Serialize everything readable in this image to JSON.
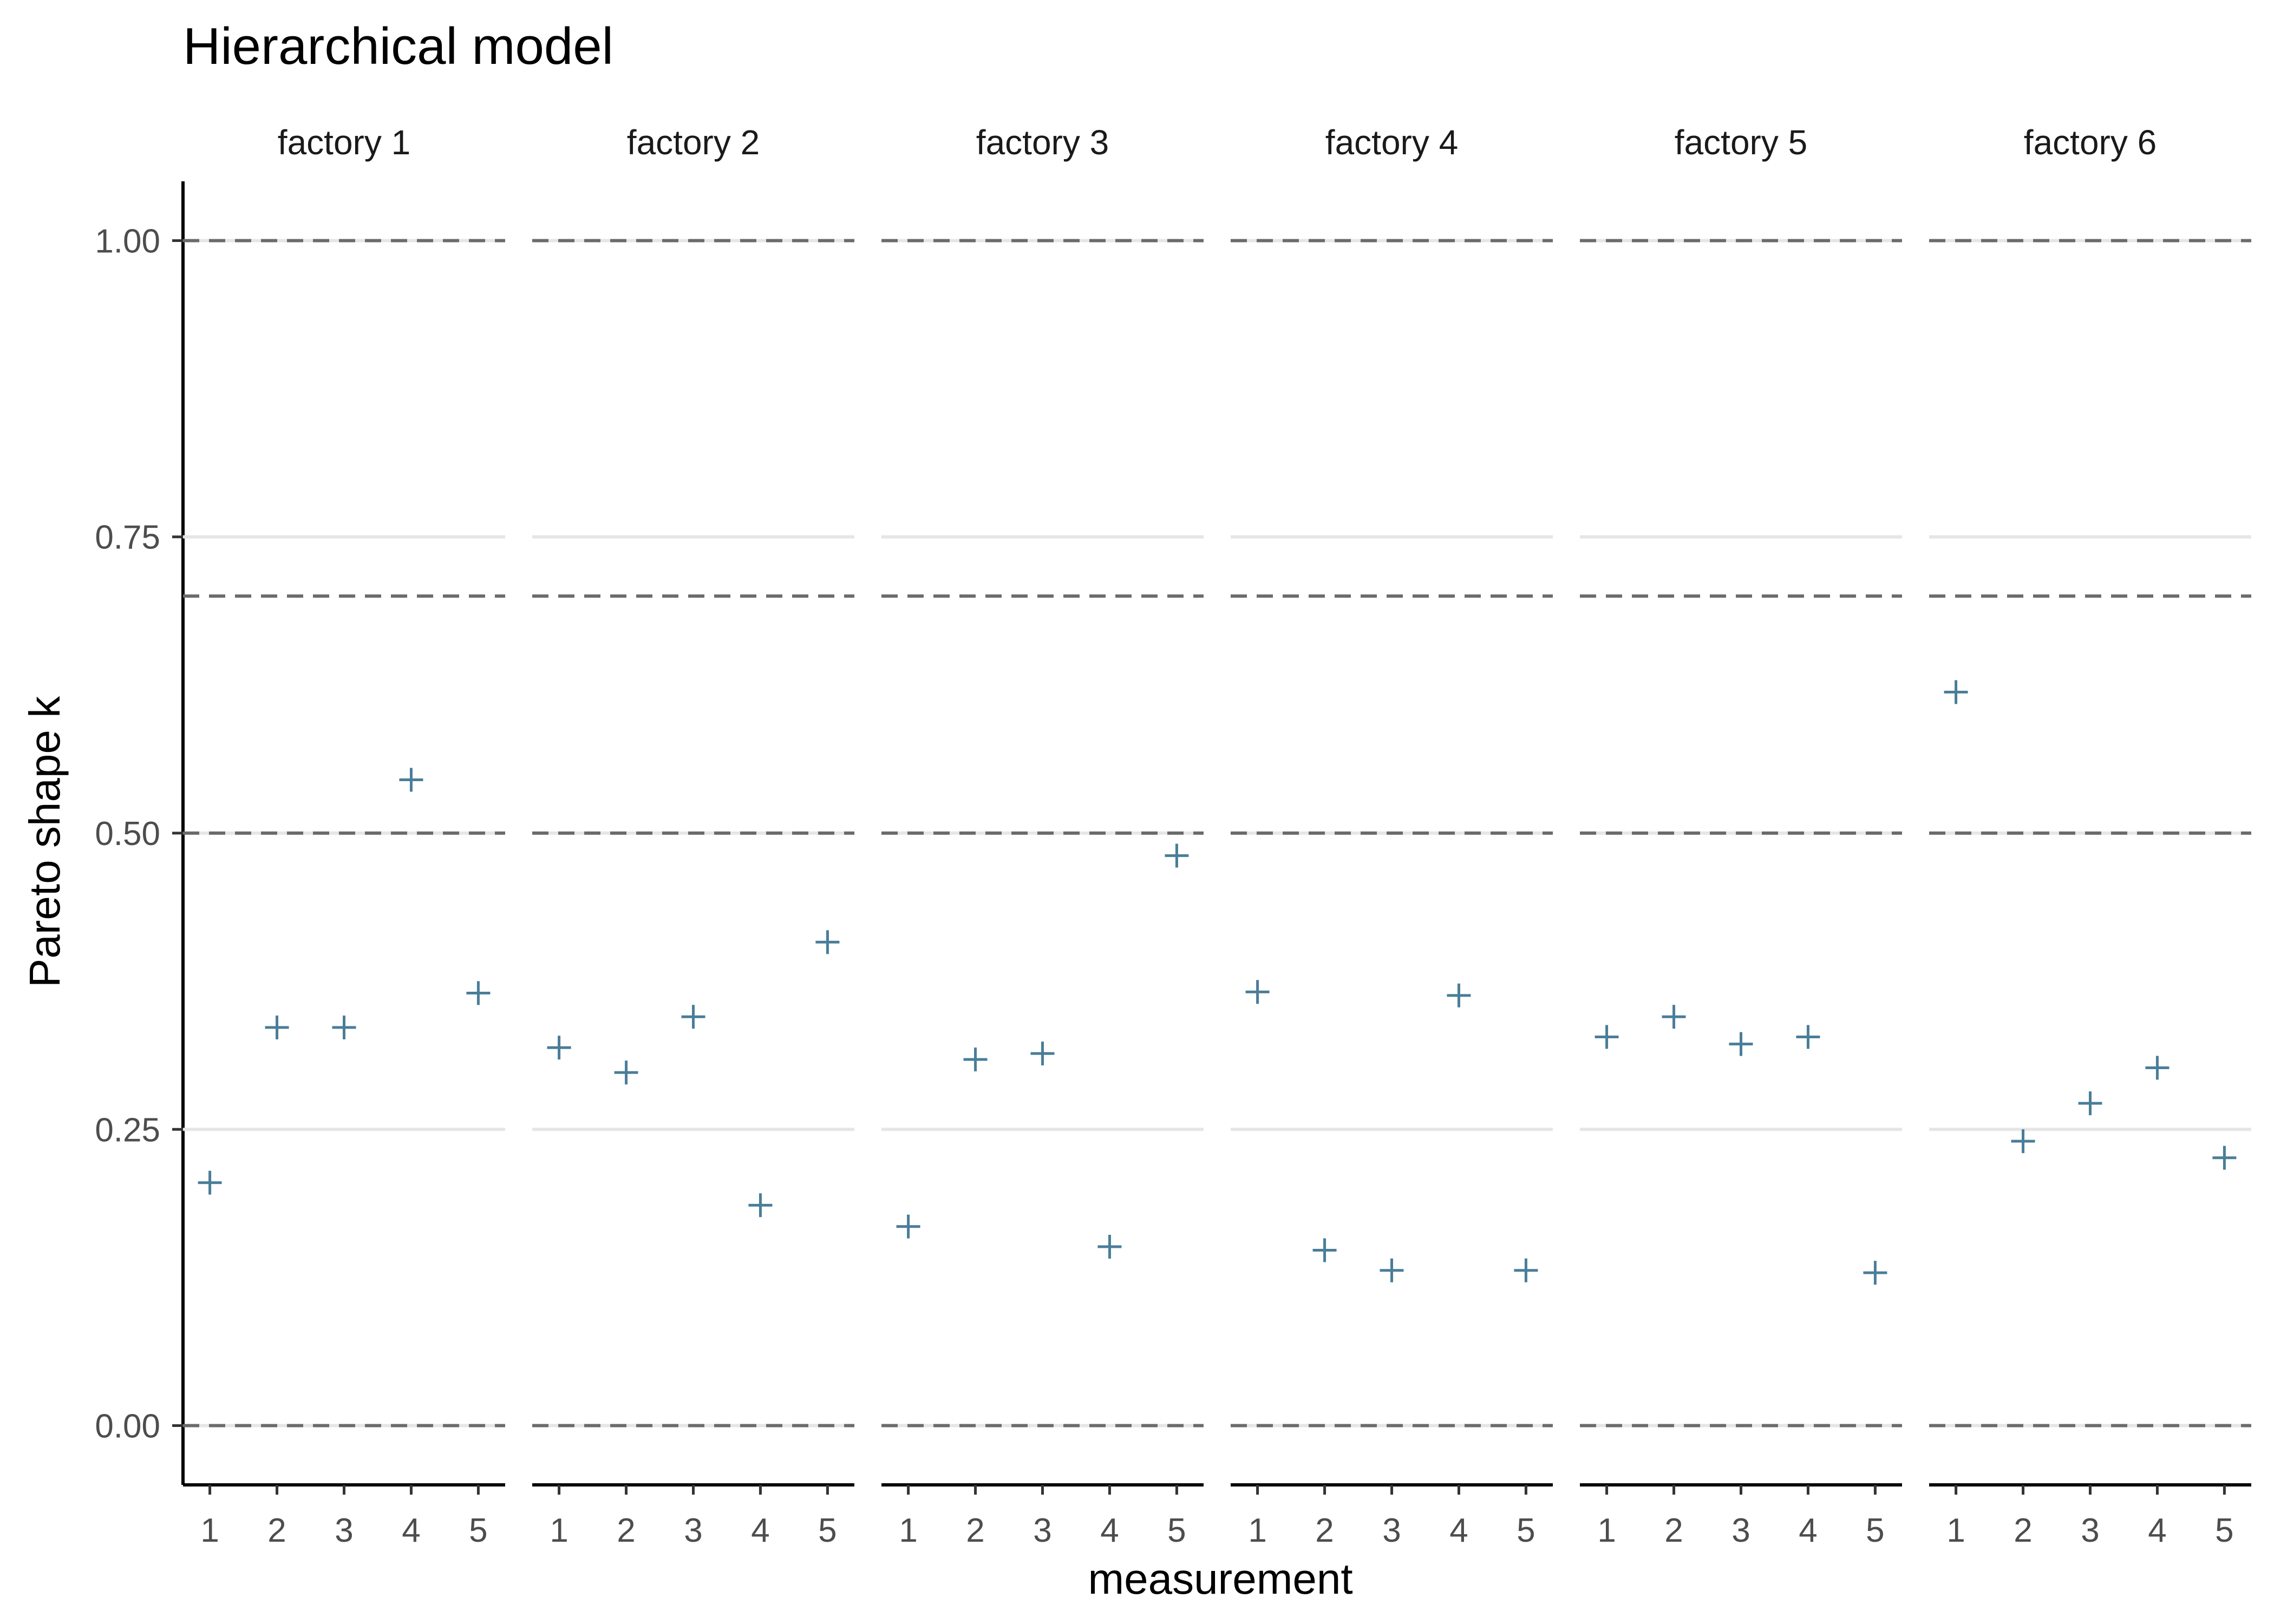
{
  "chart_data": {
    "type": "scatter",
    "title": "Hierarchical model",
    "xlabel": "measurement",
    "ylabel": "Pareto shape k",
    "ylim": [
      -0.05,
      1.05
    ],
    "y_ticks": [
      "0.00",
      "0.25",
      "0.50",
      "0.75",
      "1.00"
    ],
    "y_tick_values": [
      0,
      0.25,
      0.5,
      0.75,
      1.0
    ],
    "x_ticks": [
      "1",
      "2",
      "3",
      "4",
      "5"
    ],
    "x_tick_values": [
      1,
      2,
      3,
      4,
      5
    ],
    "reference_lines": [
      0,
      0.5,
      0.7,
      1.0
    ],
    "grid": "horizontal major",
    "point_color": "#4a7d99",
    "reference_line_color": "#6b6b6b",
    "grid_color": "#e6e6e6",
    "panels": [
      {
        "label": "factory 1",
        "x": [
          1,
          2,
          3,
          4,
          5
        ],
        "y": [
          0.205,
          0.336,
          0.336,
          0.545,
          0.365
        ]
      },
      {
        "label": "factory 2",
        "x": [
          1,
          2,
          3,
          4,
          5
        ],
        "y": [
          0.319,
          0.298,
          0.345,
          0.186,
          0.408
        ]
      },
      {
        "label": "factory 3",
        "x": [
          1,
          2,
          3,
          4,
          5
        ],
        "y": [
          0.168,
          0.309,
          0.314,
          0.151,
          0.481
        ]
      },
      {
        "label": "factory 4",
        "x": [
          1,
          2,
          3,
          4,
          5
        ],
        "y": [
          0.366,
          0.148,
          0.131,
          0.363,
          0.131
        ]
      },
      {
        "label": "factory 5",
        "x": [
          1,
          2,
          3,
          4,
          5
        ],
        "y": [
          0.328,
          0.345,
          0.322,
          0.328,
          0.129
        ]
      },
      {
        "label": "factory 6",
        "x": [
          1,
          2,
          3,
          4,
          5
        ],
        "y": [
          0.619,
          0.24,
          0.272,
          0.302,
          0.226
        ]
      }
    ]
  }
}
